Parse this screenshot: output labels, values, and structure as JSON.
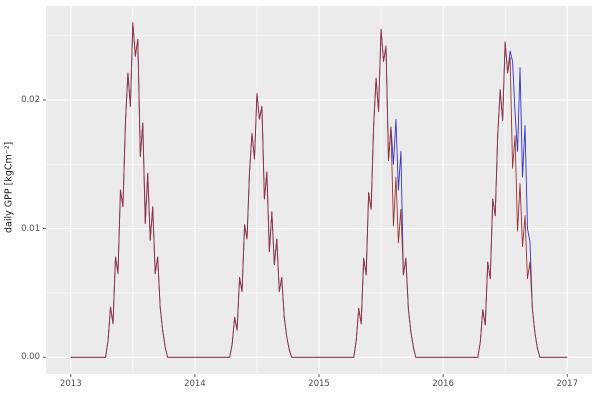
{
  "figure": {
    "background": "#ffffff",
    "panel_background": "#ebebeb",
    "grid_major_color": "#ffffff",
    "grid_minor_color": "#ffffff",
    "axis_text_color": "#4d4d4d",
    "tick_mark_color": "#333333"
  },
  "chart_data": {
    "type": "line",
    "title": "",
    "xlabel": "",
    "ylabel": "daily GPP [kgCm⁻²]",
    "legend": "none",
    "grid": true,
    "xlim": [
      2012.8,
      2017.2
    ],
    "ylim": [
      -0.0013,
      0.0273
    ],
    "x_ticks": [
      2013,
      2014,
      2015,
      2016,
      2017
    ],
    "x_tick_labels": [
      "2013",
      "2014",
      "2015",
      "2016",
      "2017"
    ],
    "x_minor": [
      2013.5,
      2014.5,
      2015.5,
      2016.5
    ],
    "y_ticks": [
      0,
      0.01,
      0.02
    ],
    "y_tick_labels": [
      "0.00",
      "0.01",
      "0.02"
    ],
    "y_minor": [
      0.005,
      0.015,
      0.025
    ],
    "x_start": 2013.0,
    "x_step": 0.02,
    "series": [
      {
        "name": "series-blue",
        "color": "#3333cc",
        "values": [
          0,
          0,
          0,
          0,
          0,
          0,
          0,
          0,
          0,
          0,
          0,
          0,
          0,
          0,
          0,
          0.0013,
          0.0039,
          0.0026,
          0.0078,
          0.0065,
          0.013,
          0.0117,
          0.0182,
          0.0221,
          0.0195,
          0.026,
          0.0234,
          0.0247,
          0.0156,
          0.0182,
          0.0104,
          0.0143,
          0.0091,
          0.0117,
          0.0065,
          0.0078,
          0.0039,
          0.0021,
          0.0008,
          0,
          0,
          0,
          0,
          0,
          0,
          0,
          0,
          0,
          0,
          0,
          0,
          0,
          0,
          0,
          0,
          0,
          0,
          0,
          0,
          0,
          0,
          0,
          0,
          0,
          0,
          0.001,
          0.0031,
          0.0021,
          0.0062,
          0.0051,
          0.0103,
          0.0092,
          0.0144,
          0.0174,
          0.0154,
          0.0205,
          0.0185,
          0.0195,
          0.0123,
          0.0144,
          0.0082,
          0.0113,
          0.0072,
          0.0092,
          0.0051,
          0.0062,
          0.0031,
          0.0016,
          0.0006,
          0,
          0,
          0,
          0,
          0,
          0,
          0,
          0,
          0,
          0,
          0,
          0,
          0,
          0,
          0,
          0,
          0,
          0,
          0,
          0,
          0,
          0,
          0,
          0,
          0,
          0,
          0.0013,
          0.0038,
          0.0026,
          0.0077,
          0.0064,
          0.0128,
          0.0115,
          0.0179,
          0.0217,
          0.0191,
          0.0255,
          0.023,
          0.0242,
          0.0153,
          0.0179,
          0.015,
          0.0185,
          0.013,
          0.016,
          0.0064,
          0.0077,
          0.0038,
          0.002,
          0.0008,
          0,
          0,
          0,
          0,
          0,
          0,
          0,
          0,
          0,
          0,
          0,
          0,
          0,
          0,
          0,
          0,
          0,
          0,
          0,
          0,
          0,
          0,
          0,
          0,
          0,
          0,
          0.0012,
          0.0037,
          0.0025,
          0.0074,
          0.0061,
          0.0123,
          0.011,
          0.0172,
          0.0208,
          0.0184,
          0.0245,
          0.0221,
          0.0238,
          0.023,
          0.019,
          0.016,
          0.0225,
          0.014,
          0.018,
          0.01,
          0.009,
          0.0037,
          0.0019,
          0.0007,
          0,
          0,
          0,
          0,
          0,
          0,
          0,
          0,
          0,
          0,
          0,
          0
        ]
      },
      {
        "name": "series-dark-red",
        "color": "#993333",
        "values": [
          0,
          0,
          0,
          0,
          0,
          0,
          0,
          0,
          0,
          0,
          0,
          0,
          0,
          0,
          0,
          0.0013,
          0.0039,
          0.0026,
          0.0078,
          0.0065,
          0.013,
          0.0117,
          0.0182,
          0.0221,
          0.0195,
          0.026,
          0.0234,
          0.0247,
          0.0156,
          0.0182,
          0.0104,
          0.0143,
          0.0091,
          0.0117,
          0.0065,
          0.0078,
          0.0039,
          0.0021,
          0.0008,
          0,
          0,
          0,
          0,
          0,
          0,
          0,
          0,
          0,
          0,
          0,
          0,
          0,
          0,
          0,
          0,
          0,
          0,
          0,
          0,
          0,
          0,
          0,
          0,
          0,
          0,
          0.001,
          0.0031,
          0.0021,
          0.0062,
          0.0051,
          0.0103,
          0.0092,
          0.0144,
          0.0174,
          0.0154,
          0.0205,
          0.0185,
          0.0195,
          0.0123,
          0.0144,
          0.0082,
          0.0113,
          0.0072,
          0.0092,
          0.0051,
          0.0062,
          0.0031,
          0.0016,
          0.0006,
          0,
          0,
          0,
          0,
          0,
          0,
          0,
          0,
          0,
          0,
          0,
          0,
          0,
          0,
          0,
          0,
          0,
          0,
          0,
          0,
          0,
          0,
          0,
          0,
          0,
          0,
          0.0013,
          0.0038,
          0.0026,
          0.0077,
          0.0064,
          0.0128,
          0.0115,
          0.0179,
          0.0217,
          0.0191,
          0.0255,
          0.023,
          0.0242,
          0.0153,
          0.0179,
          0.0102,
          0.014,
          0.0089,
          0.0115,
          0.0064,
          0.0077,
          0.0038,
          0.002,
          0.0008,
          0,
          0,
          0,
          0,
          0,
          0,
          0,
          0,
          0,
          0,
          0,
          0,
          0,
          0,
          0,
          0,
          0,
          0,
          0,
          0,
          0,
          0,
          0,
          0,
          0,
          0,
          0.0012,
          0.0037,
          0.0025,
          0.0074,
          0.0061,
          0.0123,
          0.011,
          0.0172,
          0.0208,
          0.0184,
          0.0245,
          0.0221,
          0.0233,
          0.0147,
          0.0172,
          0.0098,
          0.0135,
          0.0086,
          0.011,
          0.0061,
          0.0074,
          0.0037,
          0.0019,
          0.0007,
          0,
          0,
          0,
          0,
          0,
          0,
          0,
          0,
          0,
          0,
          0,
          0
        ]
      }
    ]
  }
}
